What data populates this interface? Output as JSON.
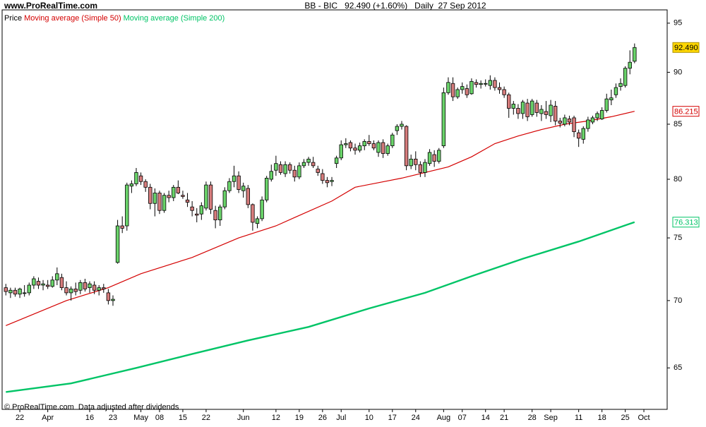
{
  "chart_data": {
    "type": "candlestick",
    "site": "www.ProRealTime.com",
    "title": "BB - BIC   92.490 (+1.60%)   Daily  27 Sep 2012",
    "footer": "© ProRealTime.com  Data adjusted after dividends",
    "price_name": "Price",
    "up_color": "#6ad36a",
    "down_color": "#d67c7c",
    "log_scale": true,
    "ylim": [
      62.1,
      96.4
    ],
    "yticks": [
      65,
      70,
      75,
      80,
      85,
      90,
      95
    ],
    "xlim": [
      -0.8,
      142
    ],
    "xticks": [
      {
        "value": 3,
        "label": "22"
      },
      {
        "value": 9,
        "label": "Apr"
      },
      {
        "value": 18,
        "label": "16"
      },
      {
        "value": 23,
        "label": "23"
      },
      {
        "value": 29,
        "label": "May"
      },
      {
        "value": 33,
        "label": "08"
      },
      {
        "value": 38,
        "label": "15"
      },
      {
        "value": 43,
        "label": "22"
      },
      {
        "value": 51,
        "label": "Jun"
      },
      {
        "value": 58,
        "label": "12"
      },
      {
        "value": 63,
        "label": "19"
      },
      {
        "value": 68,
        "label": "26"
      },
      {
        "value": 72,
        "label": "Jul"
      },
      {
        "value": 78,
        "label": "10"
      },
      {
        "value": 83,
        "label": "17"
      },
      {
        "value": 88,
        "label": "24"
      },
      {
        "value": 94,
        "label": "Aug"
      },
      {
        "value": 98,
        "label": "07"
      },
      {
        "value": 103,
        "label": "14"
      },
      {
        "value": 107,
        "label": "21"
      },
      {
        "value": 113,
        "label": "28"
      },
      {
        "value": 117,
        "label": "Sep"
      },
      {
        "value": 123,
        "label": "11"
      },
      {
        "value": 128,
        "label": "18"
      },
      {
        "value": 133,
        "label": "25"
      },
      {
        "value": 137,
        "label": "Oct"
      }
    ],
    "open": [
      71.0,
      70.6,
      70.8,
      70.5,
      70.6,
      70.6,
      71.2,
      71.5,
      71.2,
      71.2,
      71.1,
      71.6,
      71.8,
      71.0,
      70.6,
      70.9,
      70.8,
      71.4,
      71.0,
      71.2,
      70.8,
      71.0,
      70.6,
      70.0,
      73.0,
      76.0,
      76.0,
      79.4,
      79.6,
      80.3,
      79.8,
      79.3,
      77.9,
      78.8,
      77.3,
      78.6,
      78.4,
      79.3,
      78.6,
      78.2,
      77.6,
      77.0,
      77.0,
      77.5,
      79.5,
      77.3,
      76.5,
      77.6,
      79.0,
      79.8,
      80.3,
      79.0,
      79.2,
      77.8,
      76.2,
      76.6,
      78.2,
      80.0,
      80.8,
      81.3,
      80.5,
      81.3,
      80.8,
      80.2,
      81.2,
      81.5,
      81.5,
      80.9,
      80.5,
      79.9,
      79.8,
      81.4,
      81.9,
      83.1,
      83.3,
      82.8,
      82.6,
      83.0,
      83.4,
      83.2,
      82.4,
      83.3,
      82.3,
      83.0,
      84.4,
      84.8,
      84.8,
      81.2,
      81.8,
      81.3,
      80.6,
      81.4,
      82.2,
      81.6,
      83.0,
      88.0,
      88.9,
      87.6,
      88.3,
      88.4,
      87.9,
      89.0,
      88.8,
      88.9,
      88.7,
      89.2,
      88.5,
      88.3,
      87.8,
      86.5,
      86.5,
      86.0,
      87.0,
      85.9,
      87.0,
      86.0,
      86.2,
      85.8,
      86.7,
      85.3,
      85.0,
      85.5,
      85.6,
      84.2,
      83.6,
      84.6,
      85.2,
      85.6,
      85.5,
      86.3,
      87.3,
      87.8,
      88.6,
      88.7,
      90.4,
      91.1
    ],
    "high": [
      71.3,
      71.0,
      71.0,
      71.0,
      71.2,
      71.4,
      71.9,
      71.8,
      71.6,
      71.6,
      71.9,
      72.6,
      72.1,
      71.5,
      71.1,
      71.4,
      71.6,
      71.7,
      71.5,
      71.5,
      71.2,
      71.3,
      70.9,
      70.4,
      76.5,
      76.8,
      79.7,
      79.9,
      81.0,
      80.6,
      80.0,
      79.6,
      79.2,
      79.0,
      78.8,
      79.0,
      79.5,
      79.9,
      79.0,
      78.8,
      78.1,
      77.5,
      78.0,
      79.8,
      79.8,
      77.7,
      77.8,
      79.3,
      80.1,
      81.2,
      80.7,
      79.7,
      79.5,
      77.9,
      76.8,
      78.5,
      80.3,
      81.3,
      82.1,
      81.6,
      81.6,
      81.5,
      81.2,
      81.5,
      81.8,
      82.0,
      82.0,
      81.2,
      80.9,
      80.2,
      80.2,
      82.1,
      83.5,
      83.7,
      83.5,
      83.2,
      83.3,
      83.6,
      84.0,
      83.5,
      83.5,
      83.6,
      83.2,
      84.2,
      85.0,
      85.3,
      84.9,
      82.2,
      82.5,
      81.6,
      81.8,
      82.7,
      82.6,
      82.8,
      88.5,
      89.5,
      89.5,
      88.5,
      89.0,
      88.8,
      89.4,
      89.3,
      89.2,
      89.3,
      89.7,
      89.5,
      89.0,
      88.6,
      88.0,
      87.2,
      86.9,
      87.3,
      87.4,
      87.4,
      87.3,
      86.8,
      87.2,
      87.3,
      87.2,
      85.6,
      85.9,
      85.8,
      85.8,
      84.5,
      84.8,
      85.7,
      85.8,
      86.2,
      86.6,
      87.9,
      88.3,
      88.9,
      89.4,
      90.6,
      92.2,
      92.9
    ],
    "low": [
      70.4,
      70.2,
      70.3,
      70.2,
      70.3,
      70.4,
      70.9,
      70.9,
      70.8,
      70.9,
      71.0,
      71.2,
      70.8,
      70.4,
      70.0,
      70.4,
      70.5,
      70.7,
      70.6,
      70.5,
      70.4,
      70.6,
      69.7,
      69.6,
      72.9,
      75.4,
      75.6,
      78.8,
      79.4,
      79.5,
      78.9,
      77.4,
      76.8,
      77.0,
      77.1,
      78.0,
      78.1,
      78.7,
      78.3,
      77.6,
      76.8,
      76.3,
      76.5,
      77.3,
      77.0,
      75.8,
      76.0,
      77.4,
      78.8,
      79.3,
      78.8,
      78.4,
      77.5,
      75.6,
      75.8,
      76.4,
      78.0,
      79.8,
      80.3,
      80.4,
      80.2,
      80.5,
      79.8,
      80.0,
      81.0,
      81.2,
      81.0,
      80.3,
      79.6,
      79.3,
      79.4,
      81.0,
      81.7,
      82.8,
      82.5,
      82.2,
      82.4,
      82.6,
      83.0,
      82.6,
      82.0,
      81.9,
      82.1,
      82.8,
      84.0,
      84.5,
      80.8,
      80.9,
      80.8,
      80.2,
      80.2,
      81.2,
      81.1,
      81.4,
      82.8,
      87.8,
      87.2,
      87.4,
      87.9,
      87.5,
      87.8,
      88.5,
      88.4,
      88.6,
      88.3,
      88.2,
      87.9,
      87.5,
      85.6,
      85.9,
      85.5,
      85.5,
      85.3,
      85.7,
      85.7,
      85.3,
      85.5,
      85.2,
      84.9,
      84.7,
      84.8,
      84.9,
      83.8,
      82.9,
      83.2,
      84.3,
      85.0,
      85.3,
      85.4,
      86.1,
      86.8,
      87.5,
      88.2,
      88.5,
      89.8,
      90.9
    ],
    "close": [
      70.7,
      70.8,
      70.5,
      70.9,
      70.6,
      71.2,
      71.7,
      71.2,
      71.3,
      71.1,
      71.6,
      72.1,
      71.0,
      70.6,
      70.9,
      70.7,
      71.4,
      70.9,
      71.3,
      70.8,
      71.0,
      70.9,
      70.0,
      70.1,
      76.0,
      75.8,
      79.5,
      79.6,
      80.6,
      79.8,
      79.3,
      77.9,
      78.8,
      77.3,
      78.6,
      78.4,
      79.3,
      78.8,
      78.5,
      78.0,
      77.3,
      76.9,
      77.7,
      79.5,
      77.4,
      76.5,
      77.6,
      79.0,
      79.8,
      80.3,
      79.1,
      79.4,
      77.8,
      76.3,
      76.6,
      78.2,
      80.1,
      80.7,
      81.4,
      80.6,
      81.3,
      80.8,
      80.2,
      81.2,
      81.5,
      81.8,
      81.2,
      80.6,
      79.9,
      79.7,
      79.9,
      81.9,
      83.1,
      83.2,
      82.8,
      82.6,
      83.0,
      83.4,
      83.2,
      82.8,
      83.3,
      82.3,
      83.0,
      84.0,
      84.8,
      85.0,
      81.2,
      81.8,
      81.3,
      80.6,
      81.5,
      82.4,
      81.6,
      82.6,
      88.0,
      89.0,
      87.6,
      88.3,
      88.6,
      87.8,
      89.1,
      88.8,
      88.9,
      88.9,
      89.2,
      88.5,
      88.3,
      87.8,
      86.5,
      86.9,
      86.0,
      87.1,
      85.7,
      87.2,
      86.1,
      86.4,
      85.9,
      86.8,
      85.3,
      85.1,
      85.6,
      85.2,
      84.3,
      83.7,
      84.6,
      85.4,
      85.6,
      86.0,
      86.3,
      87.4,
      87.5,
      88.5,
      88.9,
      90.4,
      91.0,
      92.49
    ],
    "last_close_label": "92.490",
    "series": [
      {
        "name": "Moving average (Simple 50)",
        "color": "#d40000",
        "width": 1.2,
        "x": [
          0,
          13,
          22,
          29,
          40,
          50,
          58,
          62,
          70,
          75,
          85,
          95,
          100,
          105,
          110,
          115,
          120,
          125,
          130,
          135
        ],
        "values": [
          68.1,
          70.0,
          71.0,
          72.1,
          73.4,
          75.0,
          76.0,
          76.7,
          78.1,
          79.3,
          80.1,
          81.1,
          82.0,
          83.2,
          83.9,
          84.5,
          85.0,
          85.3,
          85.7,
          86.215
        ]
      },
      {
        "name": "Moving average (Simple 200)",
        "color": "#00c466",
        "width": 2.4,
        "x": [
          0,
          14,
          28,
          40,
          52,
          65,
          78,
          90,
          100,
          111,
          123,
          135
        ],
        "values": [
          63.3,
          63.9,
          65.0,
          66.0,
          67.0,
          68.0,
          69.4,
          70.6,
          71.9,
          73.3,
          74.7,
          76.313
        ]
      }
    ]
  }
}
